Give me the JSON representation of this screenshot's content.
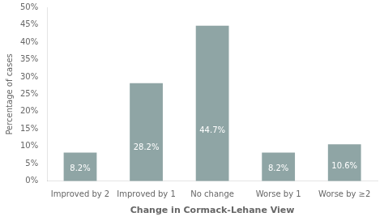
{
  "chart_data": {
    "type": "bar",
    "categories": [
      "Improved by 2",
      "Improved by 1",
      "No change",
      "Worse by 1",
      "Worse by ≥2"
    ],
    "values": [
      8.2,
      28.2,
      44.7,
      8.2,
      10.6
    ],
    "value_labels": [
      "8.2%",
      "28.2%",
      "44.7%",
      "8.2%",
      "10.6%"
    ],
    "data_labels": true,
    "color": "#8fa5a5",
    "xlabel": "Change in Cormack-Lehane View",
    "ylabel": "Percentage of cases",
    "ylim": [
      0,
      50
    ],
    "yticks": [
      {
        "value": 0,
        "label": "0%"
      },
      {
        "value": 5,
        "label": "5%"
      },
      {
        "value": 10,
        "label": "10%"
      },
      {
        "value": 15,
        "label": "15%"
      },
      {
        "value": 20,
        "label": "20%"
      },
      {
        "value": 25,
        "label": "25%"
      },
      {
        "value": 30,
        "label": "30%"
      },
      {
        "value": 35,
        "label": "35%"
      },
      {
        "value": 40,
        "label": "40%"
      },
      {
        "value": 45,
        "label": "45%"
      },
      {
        "value": 50,
        "label": "50%"
      }
    ],
    "grid": false
  }
}
